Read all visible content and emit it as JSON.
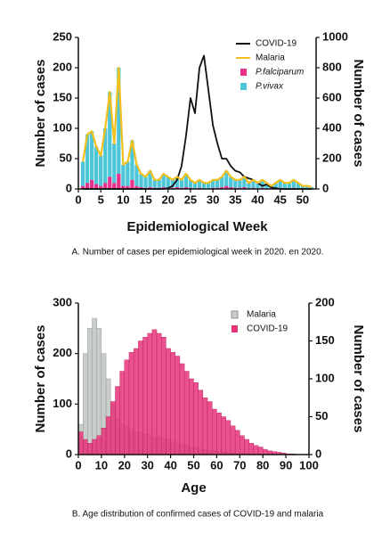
{
  "chart_data": [
    {
      "type": "bar",
      "caption": "A. Number of cases per epidemiological week in 2020. en 2020.",
      "xlabel": "Epidemiological Week",
      "ylabel": "Number of cases",
      "y2label": "Number of cases",
      "x": [
        1,
        2,
        3,
        4,
        5,
        6,
        7,
        8,
        9,
        10,
        11,
        12,
        13,
        14,
        15,
        16,
        17,
        18,
        19,
        20,
        21,
        22,
        23,
        24,
        25,
        26,
        27,
        28,
        29,
        30,
        31,
        32,
        33,
        34,
        35,
        36,
        37,
        38,
        39,
        40,
        41,
        42,
        43,
        44,
        45,
        46,
        47,
        48,
        49,
        50,
        51,
        52
      ],
      "xlim": [
        0,
        53
      ],
      "xticks": [
        0,
        5,
        10,
        15,
        20,
        25,
        30,
        35,
        40,
        45,
        50
      ],
      "ylim": [
        0,
        250
      ],
      "yticks": [
        0,
        50,
        100,
        150,
        200,
        250
      ],
      "y2lim": [
        0,
        1000
      ],
      "y2ticks": [
        0,
        200,
        400,
        600,
        800,
        1000
      ],
      "series": [
        {
          "name": "COVID-19",
          "type": "line",
          "axis": "y2",
          "color": "#111111",
          "values": [
            0,
            0,
            0,
            0,
            0,
            0,
            0,
            0,
            0,
            0,
            0,
            0,
            0,
            0,
            0,
            0,
            0,
            0,
            0,
            5,
            20,
            60,
            150,
            350,
            600,
            500,
            800,
            880,
            650,
            420,
            300,
            200,
            200,
            150,
            120,
            110,
            80,
            70,
            60,
            40,
            20,
            30,
            10,
            5,
            0,
            0,
            0,
            0,
            0,
            0,
            0,
            0
          ]
        },
        {
          "name": "Malaria",
          "type": "line",
          "color": "#f2c01c",
          "values": [
            45,
            90,
            95,
            70,
            55,
            100,
            160,
            75,
            200,
            40,
            45,
            80,
            40,
            25,
            20,
            30,
            15,
            15,
            25,
            20,
            15,
            20,
            15,
            25,
            15,
            10,
            15,
            10,
            10,
            15,
            15,
            20,
            30,
            20,
            15,
            15,
            20,
            10,
            15,
            10,
            15,
            10,
            5,
            10,
            15,
            10,
            10,
            15,
            10,
            5,
            5,
            3
          ]
        },
        {
          "name": "P.falciparum",
          "type": "bar",
          "italic": true,
          "color": "#e8318a",
          "values": [
            5,
            10,
            15,
            8,
            5,
            10,
            20,
            10,
            25,
            5,
            5,
            15,
            5,
            3,
            2,
            3,
            2,
            2,
            3,
            2,
            2,
            3,
            2,
            3,
            2,
            1,
            2,
            1,
            1,
            2,
            2,
            3,
            5,
            3,
            2,
            2,
            3,
            1,
            2,
            1,
            2,
            1,
            1,
            1,
            2,
            1,
            1,
            2,
            1,
            1,
            1,
            0
          ]
        },
        {
          "name": "P.vivax",
          "type": "bar",
          "italic": true,
          "color": "#4cc6d8",
          "values": [
            40,
            80,
            80,
            62,
            50,
            90,
            140,
            65,
            175,
            35,
            40,
            65,
            35,
            22,
            18,
            27,
            13,
            13,
            22,
            18,
            13,
            17,
            13,
            22,
            13,
            9,
            13,
            9,
            9,
            13,
            13,
            17,
            25,
            17,
            13,
            13,
            17,
            9,
            13,
            9,
            13,
            9,
            4,
            9,
            13,
            9,
            9,
            13,
            9,
            4,
            4,
            3
          ]
        }
      ]
    },
    {
      "type": "histogram",
      "caption": "B. Age distribution of confirmed cases of COVID-19 and malaria",
      "xlabel": "Age",
      "ylabel": "Number of cases",
      "y2label": "Number of cases",
      "bins": [
        0,
        2,
        4,
        6,
        8,
        10,
        12,
        14,
        16,
        18,
        20,
        22,
        24,
        26,
        28,
        30,
        32,
        34,
        36,
        38,
        40,
        42,
        44,
        46,
        48,
        50,
        52,
        54,
        56,
        58,
        60,
        62,
        64,
        66,
        68,
        70,
        72,
        74,
        76,
        78,
        80,
        82,
        84,
        86,
        88,
        90,
        92,
        94,
        96,
        98,
        100
      ],
      "xlim": [
        0,
        100
      ],
      "xticks": [
        0,
        10,
        20,
        30,
        40,
        50,
        60,
        70,
        80,
        90,
        100
      ],
      "ylim": [
        0,
        300
      ],
      "yticks": [
        0,
        100,
        200,
        300
      ],
      "y2lim": [
        0,
        200
      ],
      "y2ticks": [
        0,
        50,
        100,
        150,
        200
      ],
      "series": [
        {
          "name": "Malaria",
          "color": "#c9cdc9",
          "values": [
            60,
            200,
            250,
            270,
            250,
            200,
            150,
            100,
            70,
            60,
            55,
            50,
            45,
            45,
            40,
            40,
            35,
            35,
            30,
            30,
            25,
            25,
            20,
            20,
            15,
            15,
            12,
            10,
            8,
            8,
            6,
            5,
            4,
            3,
            3,
            2,
            1,
            1,
            1,
            0,
            0,
            0,
            0,
            0,
            0,
            0,
            0,
            0,
            0,
            0
          ]
        },
        {
          "name": "COVID-19",
          "axis": "y2",
          "color": "#e6337a",
          "values": [
            30,
            20,
            15,
            20,
            25,
            35,
            50,
            70,
            90,
            110,
            125,
            135,
            140,
            150,
            155,
            160,
            165,
            160,
            155,
            140,
            135,
            130,
            120,
            110,
            100,
            95,
            85,
            75,
            70,
            60,
            55,
            50,
            45,
            38,
            32,
            25,
            20,
            15,
            12,
            10,
            7,
            5,
            4,
            3,
            2,
            1,
            1,
            0,
            0,
            0
          ]
        }
      ]
    }
  ]
}
